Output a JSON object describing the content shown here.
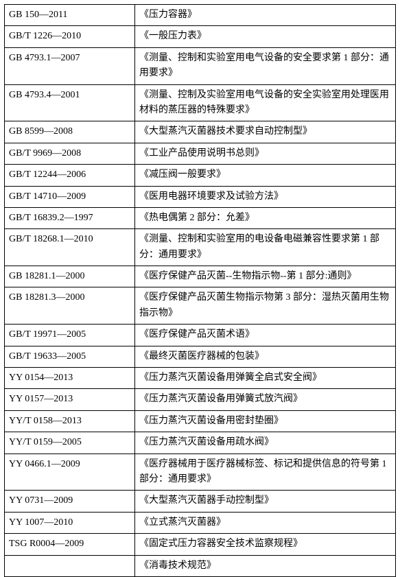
{
  "table": {
    "border_color": "#000000",
    "background_color": "#ffffff",
    "text_color": "#000000",
    "font_size": 14,
    "col_code_width": 190,
    "rows": [
      {
        "code": "GB 150—2011",
        "title": "《压力容器》"
      },
      {
        "code": "GB/T 1226—2010",
        "title": "《一般压力表》"
      },
      {
        "code": "GB 4793.1—2007",
        "title": "《测量、控制和实验室用电气设备的安全要求第 1 部分：通用要求》"
      },
      {
        "code": "GB 4793.4—2001",
        "title": "《测量、控制及实验室用电气设备的安全实验室用处理医用材料的蒸压器的特殊要求》"
      },
      {
        "code": "GB 8599—2008",
        "title": "《大型蒸汽灭菌器技术要求自动控制型》"
      },
      {
        "code": "GB/T 9969—2008",
        "title": "《工业产品使用说明书总则》"
      },
      {
        "code": "GB/T 12244—2006",
        "title": "《减压阀一般要求》"
      },
      {
        "code": "GB/T 14710—2009",
        "title": "《医用电器环境要求及试验方法》"
      },
      {
        "code": "GB/T 16839.2—1997",
        "title": "《热电偶第 2 部分：允差》"
      },
      {
        "code": "GB/T 18268.1—2010",
        "title": "《测量、控制和实验室用的电设备电磁兼容性要求第 1 部分：通用要求》"
      },
      {
        "code": "GB 18281.1—2000",
        "title": "《医疗保健产品灭菌--生物指示物--第 1 部分:通则》"
      },
      {
        "code": "GB 18281.3—2000",
        "title": "《医疗保健产品灭菌生物指示物第 3 部分：湿热灭菌用生物指示物》"
      },
      {
        "code": "GB/T 19971—2005",
        "title": "《医疗保健产品灭菌术语》"
      },
      {
        "code": "GB/T 19633—2005",
        "title": "《最终灭菌医疗器械的包装》"
      },
      {
        "code": "YY 0154—2013",
        "title": "《压力蒸汽灭菌设备用弹簧全启式安全阀》"
      },
      {
        "code": "YY 0157—2013",
        "title": "《压力蒸汽灭菌设备用弹簧式放汽阀》"
      },
      {
        "code": "YY/T 0158—2013",
        "title": "《压力蒸汽灭菌设备用密封垫圈》"
      },
      {
        "code": "YY/T 0159—2005",
        "title": "《压力蒸汽灭菌设备用疏水阀》"
      },
      {
        "code": "YY 0466.1—2009",
        "title": "《医疗器械用于医疗器械标签、标记和提供信息的符号第 1 部分：通用要求》"
      },
      {
        "code": "YY 0731—2009",
        "title": "《大型蒸汽灭菌器手动控制型》"
      },
      {
        "code": "YY 1007—2010",
        "title": "《立式蒸汽灭菌器》"
      },
      {
        "code": "TSG R0004—2009",
        "title": "《固定式压力容器安全技术监察规程》"
      },
      {
        "code": "",
        "title": "《消毒技术规范》"
      }
    ]
  }
}
